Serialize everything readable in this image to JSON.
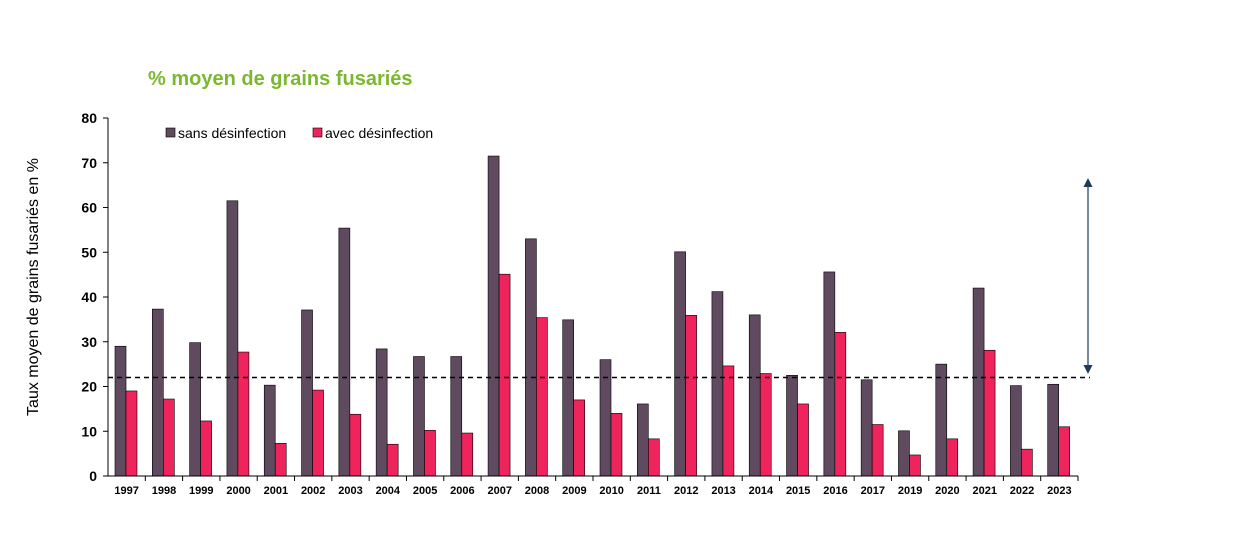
{
  "chart_data": {
    "type": "bar",
    "title": "% moyen de grains fusariés",
    "xlabel": "",
    "ylabel": "Taux moyen de grains fusariés en %",
    "ylim": [
      0,
      80
    ],
    "yticks": [
      0,
      10,
      20,
      30,
      40,
      50,
      60,
      70,
      80
    ],
    "grid": false,
    "legend_position": "top-left",
    "reference_line": {
      "y": 22,
      "style": "dashed"
    },
    "categories": [
      "1997",
      "1998",
      "1999",
      "2000",
      "2001",
      "2002",
      "2003",
      "2004",
      "2005",
      "2006",
      "2007",
      "2008",
      "2009",
      "2010",
      "2011",
      "2012",
      "2013",
      "2014",
      "2015",
      "2016",
      "2017",
      "2019",
      "2020",
      "2021",
      "2022",
      "2023"
    ],
    "series": [
      {
        "name": "sans désinfection",
        "color": "#5f4a5f",
        "values": [
          29,
          37.3,
          29.8,
          61.5,
          20.3,
          37.1,
          55.4,
          28.4,
          26.7,
          26.7,
          71.5,
          53,
          34.9,
          26,
          16.1,
          50.1,
          41.2,
          36,
          22.5,
          45.6,
          21.5,
          10.1,
          25,
          42,
          20.2,
          20.5
        ]
      },
      {
        "name": "avec désinfection",
        "color": "#f0245c",
        "values": [
          19,
          17.2,
          12.3,
          27.7,
          7.3,
          19.2,
          13.8,
          7.1,
          10.2,
          9.6,
          45.1,
          35.4,
          17,
          14,
          8.3,
          35.9,
          24.6,
          22.9,
          16.1,
          32.1,
          11.5,
          4.7,
          8.3,
          28.1,
          6,
          11
        ]
      }
    ]
  },
  "colors": {
    "title": "#7cb82f",
    "arrow": "#1f3b5a",
    "axis": "#000000"
  }
}
